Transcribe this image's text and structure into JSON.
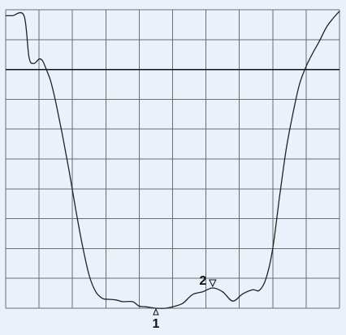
{
  "chart_data": {
    "type": "line",
    "title": "",
    "xlabel": "",
    "ylabel": "",
    "grid": true,
    "grid_divisions": {
      "x": 10,
      "y": 10
    },
    "reference_level_division": 2,
    "xlim": [
      0,
      10
    ],
    "ylim": [
      0,
      10
    ],
    "series": [
      {
        "x": [
          0,
          0.2,
          0.55,
          0.7,
          0.85,
          1.0,
          1.1,
          1.2,
          1.35,
          1.5,
          1.7,
          1.9,
          2.1,
          2.3,
          2.5,
          2.7,
          2.9,
          3.1,
          3.3,
          3.5,
          3.8,
          4.0,
          4.2,
          4.5,
          4.8,
          5.0,
          5.3,
          5.6,
          5.9,
          6.2,
          6.5,
          6.8,
          7.1,
          7.4,
          7.6,
          7.8,
          8.0,
          8.2,
          8.4,
          8.6,
          8.8,
          9.0,
          9.2,
          9.4,
          9.6,
          9.8,
          10.0
        ],
        "values": [
          9.8,
          9.8,
          9.8,
          8.4,
          8.2,
          8.35,
          8.3,
          8.05,
          7.6,
          6.9,
          5.8,
          4.6,
          3.3,
          2.1,
          1.1,
          0.55,
          0.33,
          0.3,
          0.28,
          0.22,
          0.22,
          0.07,
          0.05,
          0.0,
          0.0,
          0.05,
          0.16,
          0.46,
          0.55,
          0.68,
          0.55,
          0.24,
          0.48,
          0.62,
          0.6,
          1.0,
          2.0,
          3.7,
          5.3,
          6.5,
          7.5,
          8.1,
          8.55,
          8.95,
          9.4,
          9.7,
          9.95
        ]
      }
    ],
    "annotations": [
      {
        "label": "1",
        "x": 4.5,
        "y": 0.0,
        "pointer": "up"
      },
      {
        "label": "2",
        "x": 6.2,
        "y": 0.68,
        "pointer": "down"
      }
    ]
  }
}
